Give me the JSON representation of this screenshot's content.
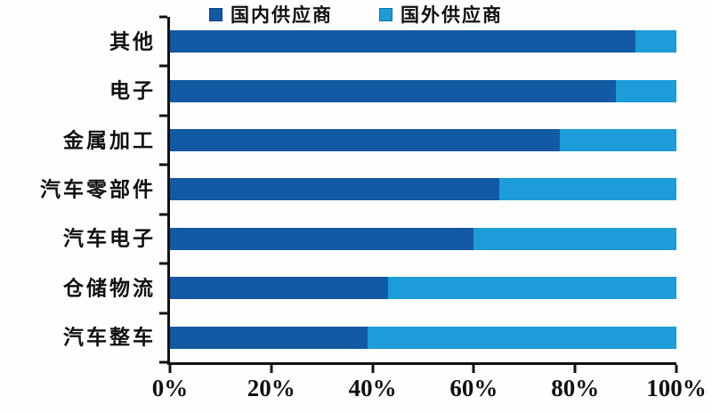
{
  "legend": {
    "items": [
      {
        "label": "国内供应商",
        "color": "#1459A3"
      },
      {
        "label": "国外供应商",
        "color": "#1C9CD8"
      }
    ]
  },
  "chart_data": {
    "type": "bar",
    "orientation": "horizontal",
    "stacked": true,
    "title": "",
    "xlabel": "",
    "ylabel": "",
    "xlim": [
      0,
      100
    ],
    "x_tick_labels": [
      "0%",
      "20%",
      "40%",
      "60%",
      "80%",
      "100%"
    ],
    "legend_position": "top",
    "grid": false,
    "categories": [
      "其他",
      "电子",
      "金属加工",
      "汽车零部件",
      "汽车电子",
      "仓储物流",
      "汽车整车"
    ],
    "series": [
      {
        "name": "国内供应商",
        "color": "#1459A3",
        "values": [
          92,
          88,
          77,
          65,
          60,
          43,
          39
        ]
      },
      {
        "name": "国外供应商",
        "color": "#1C9CD8",
        "values": [
          8,
          12,
          23,
          35,
          40,
          57,
          61
        ]
      }
    ]
  }
}
